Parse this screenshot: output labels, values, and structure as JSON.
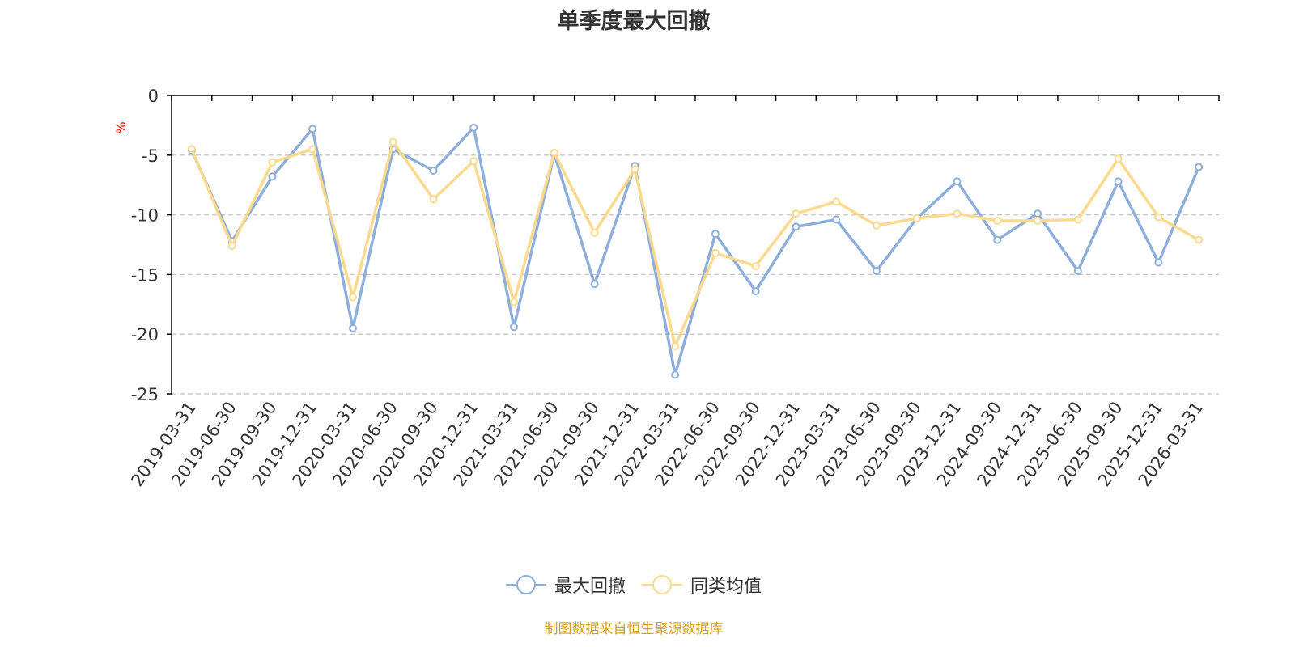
{
  "chart_data": {
    "type": "line",
    "title": "单季度最大回撤",
    "ylabel": "%",
    "ylim": [
      -25,
      0
    ],
    "yticks": [
      0,
      -5,
      -10,
      -15,
      -20,
      -25
    ],
    "grid": true,
    "legend_position": "bottom-center",
    "categories": [
      "2019-03-31",
      "2019-06-30",
      "2019-09-30",
      "2019-12-31",
      "2020-03-31",
      "2020-06-30",
      "2020-09-30",
      "2020-12-31",
      "2021-03-31",
      "2021-06-30",
      "2021-09-30",
      "2021-12-31",
      "2022-03-31",
      "2022-06-30",
      "2022-09-30",
      "2022-12-31",
      "2023-03-31",
      "2023-06-30",
      "2023-09-30",
      "2023-12-31",
      "2024-09-30",
      "2024-12-31",
      "2025-06-30",
      "2025-09-30",
      "2025-12-31",
      "2026-03-31"
    ],
    "series": [
      {
        "name": "最大回撤",
        "color": "#8eaedb",
        "values": [
          -4.6,
          -12.2,
          -6.8,
          -2.8,
          -19.5,
          -4.5,
          -6.3,
          -2.7,
          -19.4,
          -4.9,
          -15.8,
          -5.9,
          -23.4,
          -11.6,
          -16.4,
          -11.0,
          -10.4,
          -14.7,
          -10.3,
          -7.2,
          -12.1,
          -9.9,
          -14.7,
          -7.2,
          -14.0,
          -6.0
        ]
      },
      {
        "name": "同类均值",
        "color": "#fbd98e",
        "values": [
          -4.5,
          -12.6,
          -5.6,
          -4.5,
          -16.9,
          -3.9,
          -8.7,
          -5.5,
          -17.3,
          -4.8,
          -11.5,
          -6.2,
          -21.0,
          -13.2,
          -14.3,
          -9.9,
          -8.9,
          -10.9,
          -10.3,
          -9.9,
          -10.5,
          -10.5,
          -10.4,
          -5.3,
          -10.2,
          -12.1
        ]
      }
    ]
  },
  "legend": {
    "items": [
      "最大回撤",
      "同类均值"
    ]
  },
  "source_note": "制图数据来自恒生聚源数据库",
  "colors": {
    "axis": "#000000",
    "grid": "#cccccc",
    "tick_label": "#333333",
    "unit_label": "#ff0000",
    "source_note": "#d4a017"
  }
}
